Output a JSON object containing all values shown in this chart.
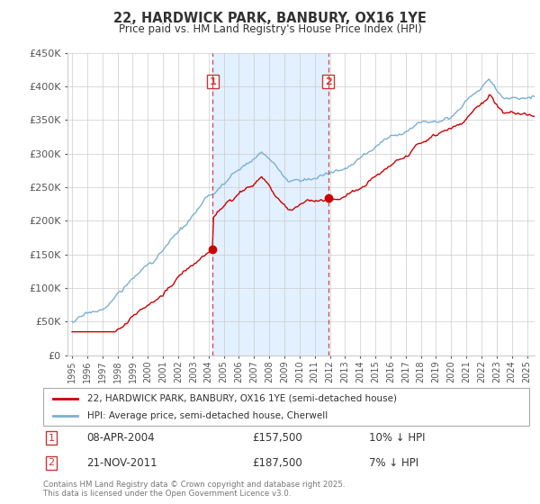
{
  "title": "22, HARDWICK PARK, BANBURY, OX16 1YE",
  "subtitle": "Price paid vs. HM Land Registry's House Price Index (HPI)",
  "ylabel_ticks": [
    "£0",
    "£50K",
    "£100K",
    "£150K",
    "£200K",
    "£250K",
    "£300K",
    "£350K",
    "£400K",
    "£450K"
  ],
  "ylim": [
    0,
    450000
  ],
  "xlim_start": 1994.7,
  "xlim_end": 2025.5,
  "purchase1_date": "08-APR-2004",
  "purchase1_price": 157500,
  "purchase1_label": "£157,500",
  "purchase1_hpi": "10% ↓ HPI",
  "purchase1_x": 2004.27,
  "purchase2_date": "21-NOV-2011",
  "purchase2_price": 187500,
  "purchase2_label": "£187,500",
  "purchase2_hpi": "7% ↓ HPI",
  "purchase2_x": 2011.89,
  "legend_label1": "22, HARDWICK PARK, BANBURY, OX16 1YE (semi-detached house)",
  "legend_label2": "HPI: Average price, semi-detached house, Cherwell",
  "footer": "Contains HM Land Registry data © Crown copyright and database right 2025.\nThis data is licensed under the Open Government Licence v3.0.",
  "line_color_red": "#cc0000",
  "line_color_blue": "#7ab0d4",
  "vline_color": "#cc3333",
  "bg_band_color": "#ddeeff",
  "title_color": "#333333",
  "grid_color": "#cccccc"
}
